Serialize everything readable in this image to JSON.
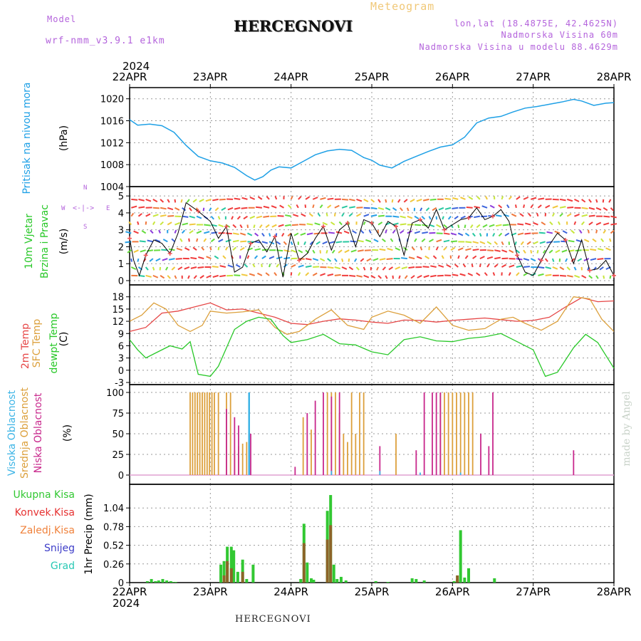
{
  "header": {
    "model_label": "Model",
    "model_name": "wrf-nmm_v3.9.1 e1km",
    "title": "HERCEGNOVI",
    "meteogram": "Meteogram",
    "lonlat": "lon,lat (18.4875E, 42.4625N)",
    "altitude": "Nadmorska Visina 60m",
    "model_altitude": "Nadmorska Visina u modelu 88.4629m",
    "year_top": "2024",
    "year_bottom": "2024",
    "footer_title": "HERCEGNOVI",
    "watermark": "made by Angel"
  },
  "colors": {
    "pressure": "#1ea0e6",
    "temp2m": "#e64646",
    "sfc": "#dca03c",
    "dewpt": "#28c828",
    "high_cloud": "#3cb4e6",
    "mid_cloud": "#dca03c",
    "low_cloud": "#c8288c",
    "total_precip": "#32c832",
    "conv_precip": "#e63232",
    "frozen": "#f0823c",
    "snow": "#3c3cc8",
    "hail": "#28c8b4",
    "grid": "#999999"
  },
  "panel_labels": {
    "pressure": {
      "line1": "Pritisak na nivou mora",
      "unit": "(hPa)"
    },
    "wind": {
      "line1": "10m Vjetar",
      "line2": "Brzina i Pravac",
      "unit": "(m/s)"
    },
    "wind_compass": {
      "n": "N",
      "w": "W",
      "e": "E",
      "s": "S"
    },
    "temp": {
      "line1": "2m Temp",
      "line2": "SFC Temp",
      "line3": "dewpt Temp",
      "unit": "(C)"
    },
    "cloud": {
      "line1": "Visoka Oblacnost",
      "line2": "Srednja Oblacnost",
      "line3": "Niska Oblacnost",
      "unit": "(%)"
    },
    "precip": {
      "unit": "1hr Precip (mm)"
    }
  },
  "precip_legend": [
    "Ukupna Kisa",
    "Konvek.Kisa",
    "Zaledj.Kisa",
    "Snijeg",
    "Grad"
  ],
  "chart_data": {
    "type": "line",
    "x_dates": [
      "22APR",
      "23APR",
      "24APR",
      "25APR",
      "26APR",
      "27APR",
      "28APR"
    ],
    "panels": [
      {
        "name": "pressure",
        "type": "line",
        "ylim": [
          1004,
          1021
        ],
        "yticks": [
          1004,
          1008,
          1012,
          1016,
          1020
        ],
        "series": [
          {
            "x": [
              0,
              0.1,
              0.25,
              0.4,
              0.55,
              0.7,
              0.85,
              1.0,
              1.15,
              1.3,
              1.45,
              1.55,
              1.65,
              1.75,
              1.85,
              2.0,
              2.15,
              2.3,
              2.45,
              2.6,
              2.75,
              2.9,
              3.0,
              3.1,
              3.25,
              3.4,
              3.55,
              3.7,
              3.85,
              4.0,
              4.15,
              4.3,
              4.45,
              4.6,
              4.75,
              4.9,
              5.05,
              5.2,
              5.35,
              5.5,
              5.6,
              5.75,
              5.9,
              6.0
            ],
            "values": [
              1016.2,
              1015.2,
              1015.4,
              1015.1,
              1013.9,
              1011.5,
              1009.5,
              1008.7,
              1008.3,
              1007.5,
              1006.0,
              1005.2,
              1005.8,
              1007.0,
              1007.6,
              1007.4,
              1008.6,
              1009.8,
              1010.5,
              1010.8,
              1010.6,
              1009.3,
              1008.8,
              1007.9,
              1007.4,
              1008.6,
              1009.5,
              1010.4,
              1011.2,
              1011.6,
              1013.0,
              1015.6,
              1016.5,
              1016.8,
              1017.6,
              1018.3,
              1018.6,
              1019.0,
              1019.4,
              1019.9,
              1019.6,
              1018.8,
              1019.2,
              1019.3
            ]
          }
        ]
      },
      {
        "name": "wind",
        "type": "line",
        "ylim": [
          0,
          5.3
        ],
        "yticks": [
          0,
          1,
          2,
          3,
          4,
          5
        ],
        "series": [
          {
            "x": [
              0,
              0.05,
              0.12,
              0.2,
              0.3,
              0.4,
              0.5,
              0.6,
              0.7,
              0.85,
              1.0,
              1.1,
              1.2,
              1.3,
              1.4,
              1.5,
              1.6,
              1.7,
              1.8,
              1.9,
              2.0,
              2.1,
              2.2,
              2.3,
              2.4,
              2.5,
              2.6,
              2.7,
              2.8,
              2.9,
              3.0,
              3.1,
              3.2,
              3.3,
              3.4,
              3.5,
              3.6,
              3.7,
              3.8,
              3.9,
              4.0,
              4.1,
              4.2,
              4.3,
              4.4,
              4.5,
              4.6,
              4.7,
              4.8,
              4.9,
              5.0,
              5.1,
              5.2,
              5.3,
              5.4,
              5.5,
              5.6,
              5.7,
              5.8,
              5.9,
              6.0
            ],
            "values": [
              2.5,
              1.2,
              0.3,
              1.5,
              2.4,
              2.2,
              1.6,
              2.8,
              4.6,
              4.1,
              3.5,
              2.5,
              3.2,
              0.5,
              0.8,
              2.2,
              2.4,
              1.7,
              2.6,
              0.2,
              2.8,
              1.2,
              1.6,
              2.5,
              3.2,
              1.8,
              3.0,
              3.4,
              2.0,
              3.6,
              3.4,
              2.6,
              3.5,
              3.2,
              1.5,
              3.4,
              3.6,
              3.1,
              4.2,
              3.0,
              3.3,
              3.6,
              3.7,
              4.3,
              3.6,
              3.8,
              4.2,
              3.5,
              1.5,
              0.5,
              0.3,
              1.2,
              2.1,
              2.8,
              2.4,
              1.0,
              2.4,
              0.6,
              0.7,
              1.2,
              0.3
            ]
          }
        ]
      },
      {
        "name": "temperature",
        "type": "line",
        "ylim": [
          -3,
          19
        ],
        "yticks": [
          -3,
          0,
          3,
          6,
          9,
          12,
          15,
          18
        ],
        "series": [
          {
            "name": "2m Temp",
            "x": [
              0,
              0.2,
              0.4,
              0.6,
              0.8,
              1.0,
              1.2,
              1.4,
              1.6,
              1.8,
              2.0,
              2.2,
              2.4,
              2.6,
              2.8,
              3.0,
              3.2,
              3.4,
              3.6,
              3.8,
              4.0,
              4.2,
              4.4,
              4.6,
              4.8,
              5.0,
              5.2,
              5.4,
              5.6,
              5.8,
              6.0
            ],
            "values": [
              9.5,
              10.5,
              14.0,
              14.5,
              15.5,
              16.5,
              14.8,
              15.0,
              14.0,
              13.0,
              11.5,
              11.2,
              12.0,
              12.6,
              12.3,
              11.8,
              11.5,
              12.3,
              12.2,
              11.8,
              12.2,
              12.5,
              12.8,
              12.4,
              12.0,
              12.2,
              13.0,
              15.5,
              17.8,
              16.8,
              17.0
            ]
          },
          {
            "name": "SFC Temp",
            "x": [
              0,
              0.15,
              0.3,
              0.45,
              0.6,
              0.75,
              0.9,
              1.0,
              1.2,
              1.4,
              1.6,
              1.8,
              1.95,
              2.1,
              2.3,
              2.5,
              2.7,
              2.9,
              3.0,
              3.2,
              3.4,
              3.6,
              3.8,
              4.0,
              4.2,
              4.4,
              4.6,
              4.75,
              4.9,
              5.1,
              5.3,
              5.5,
              5.7,
              5.85,
              6.0
            ],
            "values": [
              12.0,
              13.5,
              16.5,
              15.0,
              11.0,
              9.5,
              11.0,
              14.5,
              14.0,
              14.3,
              14.8,
              10.5,
              8.8,
              9.5,
              12.5,
              14.8,
              11.0,
              10.0,
              13.0,
              14.5,
              13.5,
              11.5,
              15.5,
              11.0,
              9.8,
              10.2,
              12.5,
              13.0,
              11.5,
              9.8,
              12.0,
              18.0,
              17.5,
              12.5,
              9.5
            ]
          },
          {
            "name": "dewpt Temp",
            "x": [
              0,
              0.1,
              0.2,
              0.35,
              0.5,
              0.65,
              0.75,
              0.85,
              1.0,
              1.1,
              1.3,
              1.45,
              1.6,
              1.75,
              1.9,
              2.0,
              2.2,
              2.4,
              2.6,
              2.8,
              3.0,
              3.2,
              3.4,
              3.6,
              3.8,
              4.0,
              4.2,
              4.4,
              4.6,
              4.8,
              5.0,
              5.15,
              5.3,
              5.5,
              5.65,
              5.8,
              6.0
            ],
            "values": [
              7.5,
              5.0,
              3.0,
              4.5,
              6.0,
              5.2,
              7.0,
              -1.0,
              -1.5,
              1.0,
              10.0,
              12.0,
              13.0,
              12.5,
              8.5,
              6.8,
              7.5,
              8.8,
              6.5,
              6.2,
              4.5,
              3.8,
              7.5,
              8.2,
              7.2,
              7.0,
              7.8,
              8.2,
              9.0,
              7.0,
              5.0,
              -1.5,
              -0.5,
              5.5,
              8.8,
              6.8,
              0.5
            ]
          }
        ]
      },
      {
        "name": "clouds",
        "type": "bar",
        "ylim": [
          0,
          100
        ],
        "yticks": [
          0,
          25,
          50,
          75,
          100
        ],
        "series": [
          {
            "name": "Srednja Oblacnost",
            "x": [
              0.75,
              0.78,
              0.81,
              0.84,
              0.87,
              0.9,
              0.93,
              0.96,
              0.99,
              1.02,
              1.05,
              1.1,
              1.2,
              1.25,
              1.3,
              1.35,
              1.4,
              1.45,
              2.15,
              2.25,
              2.45,
              2.5,
              2.55,
              2.6,
              2.65,
              2.7,
              2.75,
              2.8,
              2.85,
              2.9,
              3.3,
              3.85,
              3.9,
              3.95,
              4.0,
              4.05,
              4.1,
              4.15,
              4.2,
              4.25
            ],
            "values": [
              100,
              100,
              100,
              100,
              100,
              100,
              100,
              100,
              100,
              100,
              100,
              100,
              100,
              100,
              30,
              35,
              38,
              40,
              70,
              55,
              100,
              100,
              100,
              75,
              50,
              40,
              100,
              50,
              100,
              100,
              50,
              100,
              100,
              100,
              100,
              100,
              100,
              100,
              100,
              100
            ]
          },
          {
            "name": "Niska Oblacnost",
            "x": [
              1.2,
              1.3,
              1.35,
              1.5,
              2.05,
              2.2,
              2.3,
              2.4,
              2.5,
              2.6,
              3.1,
              3.55,
              3.65,
              3.75,
              3.8,
              3.85,
              4.35,
              4.45,
              4.5,
              5.5
            ],
            "values": [
              80,
              70,
              60,
              50,
              10,
              75,
              90,
              100,
              95,
              100,
              35,
              30,
              100,
              100,
              100,
              100,
              50,
              35,
              100,
              30
            ]
          },
          {
            "name": "Visoka Oblacnost",
            "x": [
              1.48,
              2.5,
              3.1,
              3.6,
              4.1
            ],
            "values": [
              100,
              5,
              5,
              3,
              3
            ]
          }
        ]
      },
      {
        "name": "precip",
        "type": "bar",
        "ylim": [
          0,
          1.3
        ],
        "yticks": [
          0,
          0.26,
          0.52,
          0.78,
          1.04
        ],
        "series": [
          {
            "name": "Ukupna Kisa",
            "x": [
              0.22,
              0.27,
              0.32,
              0.36,
              0.41,
              0.46,
              0.51,
              0.53,
              0.57,
              1.13,
              1.17,
              1.21,
              1.26,
              1.29,
              1.34,
              1.4,
              1.45,
              1.53,
              2.12,
              2.16,
              2.2,
              2.25,
              2.28,
              2.45,
              2.49,
              2.53,
              2.57,
              2.62,
              2.68,
              3.05,
              3.2,
              3.5,
              3.55,
              3.65,
              4.02,
              4.06,
              4.1,
              4.15,
              4.2,
              4.52
            ],
            "values": [
              0.02,
              0.05,
              0.02,
              0.03,
              0.05,
              0.03,
              0.02,
              0.01,
              0.01,
              0.25,
              0.3,
              0.5,
              0.5,
              0.45,
              0.15,
              0.32,
              0.05,
              0.25,
              0.05,
              0.82,
              0.28,
              0.06,
              0.04,
              1.0,
              1.22,
              0.25,
              0.05,
              0.08,
              0.03,
              0.02,
              0.01,
              0.06,
              0.05,
              0.03,
              0.02,
              0.04,
              0.73,
              0.07,
              0.2,
              0.06
            ]
          },
          {
            "name": "Konvek.Kisa",
            "x": [
              1.17,
              1.21,
              1.26,
              1.4,
              2.16,
              2.45,
              2.49,
              4.06
            ],
            "values": [
              0.1,
              0.3,
              0.2,
              0.15,
              0.55,
              0.6,
              0.8,
              0.1
            ]
          }
        ]
      }
    ]
  }
}
